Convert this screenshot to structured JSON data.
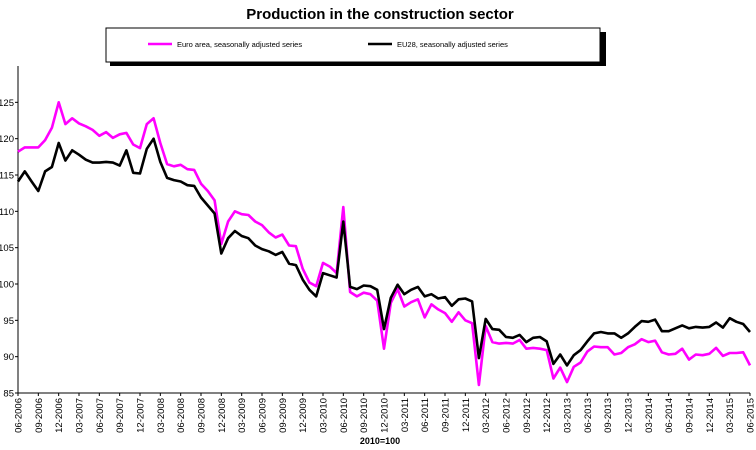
{
  "chart_data": {
    "type": "line",
    "title": "Production in the construction sector",
    "xlabel": "2010=100",
    "ylabel": "",
    "ylim": [
      85,
      130
    ],
    "yticks": [
      85,
      90,
      95,
      100,
      105,
      110,
      115,
      120,
      125
    ],
    "grid": false,
    "legend_position": "top",
    "xtick_labels": [
      "06-2006",
      "09-2006",
      "12-2006",
      "03-2007",
      "06-2007",
      "09-2007",
      "12-2007",
      "03-2008",
      "06-2008",
      "09-2008",
      "12-2008",
      "03-2009",
      "06-2009",
      "09-2009",
      "12-2009",
      "03-2010",
      "06-2010",
      "09-2010",
      "12-2010",
      "03-2011",
      "06-2011",
      "09-2011",
      "12-2011",
      "03-2012",
      "06-2012",
      "09-2012",
      "12-2012",
      "03-2013",
      "06-2013",
      "09-2013",
      "12-2013",
      "03-2014",
      "06-2014",
      "09-2014",
      "12-2014",
      "03-2015",
      "06-2015"
    ],
    "x_start": "06-2006",
    "x_end": "06-2015",
    "series": [
      {
        "name": "Euro area, seasonally adjusted series",
        "color": "#ff00ff",
        "values": [
          118.2,
          118.8,
          118.8,
          118.8,
          119.8,
          121.5,
          125.0,
          122.0,
          122.8,
          122.1,
          121.7,
          121.2,
          120.4,
          120.9,
          120.1,
          120.6,
          120.8,
          119.2,
          118.7,
          122.0,
          122.8,
          119.4,
          116.5,
          116.2,
          116.4,
          115.8,
          115.7,
          113.8,
          112.8,
          111.5,
          105.5,
          108.6,
          110.0,
          109.6,
          109.5,
          108.6,
          108.1,
          107.1,
          106.4,
          106.8,
          105.3,
          105.2,
          102.1,
          100.2,
          99.7,
          102.9,
          102.4,
          101.5,
          110.6,
          98.9,
          98.3,
          98.8,
          98.6,
          97.7,
          91.1,
          97.4,
          99.3,
          96.9,
          97.5,
          97.9,
          95.4,
          97.2,
          96.5,
          96.0,
          94.8,
          96.1,
          95.0,
          94.6,
          86.1,
          94.2,
          92.0,
          91.8,
          91.9,
          91.8,
          92.3,
          91.1,
          91.2,
          91.1,
          90.9,
          87.0,
          88.5,
          86.5,
          88.6,
          89.2,
          90.7,
          91.4,
          91.3,
          91.3,
          90.3,
          90.5,
          91.3,
          91.7,
          92.4,
          92.0,
          92.2,
          90.6,
          90.3,
          90.4,
          91.1,
          89.6,
          90.3,
          90.2,
          90.4,
          91.2,
          90.1,
          90.5,
          90.5,
          90.6,
          88.8
        ]
      },
      {
        "name": "EU28, seasonally adjusted series",
        "color": "#000000",
        "values": [
          114.1,
          115.5,
          114.1,
          112.8,
          115.5,
          116.1,
          119.4,
          117.0,
          118.4,
          117.8,
          117.1,
          116.7,
          116.7,
          116.8,
          116.7,
          116.3,
          118.4,
          115.3,
          115.2,
          118.6,
          120.0,
          116.8,
          114.6,
          114.3,
          114.1,
          113.6,
          113.5,
          111.9,
          110.8,
          109.7,
          104.2,
          106.3,
          107.3,
          106.6,
          106.3,
          105.3,
          104.8,
          104.5,
          104.0,
          104.4,
          102.8,
          102.6,
          100.6,
          99.2,
          98.3,
          101.5,
          101.2,
          100.9,
          108.6,
          99.6,
          99.3,
          99.8,
          99.7,
          99.2,
          93.8,
          98.1,
          99.9,
          98.6,
          99.2,
          99.6,
          98.3,
          98.6,
          98.0,
          98.2,
          97.0,
          97.9,
          98.0,
          97.6,
          89.8,
          95.2,
          93.8,
          93.7,
          92.7,
          92.6,
          93.0,
          92.0,
          92.6,
          92.7,
          92.1,
          89.0,
          90.3,
          88.8,
          90.2,
          90.9,
          92.1,
          93.2,
          93.4,
          93.2,
          93.2,
          92.6,
          93.2,
          94.1,
          94.9,
          94.8,
          95.1,
          93.5,
          93.5,
          93.9,
          94.3,
          93.9,
          94.1,
          94.0,
          94.1,
          94.7,
          94.0,
          95.3,
          94.8,
          94.5,
          93.4
        ]
      }
    ]
  }
}
